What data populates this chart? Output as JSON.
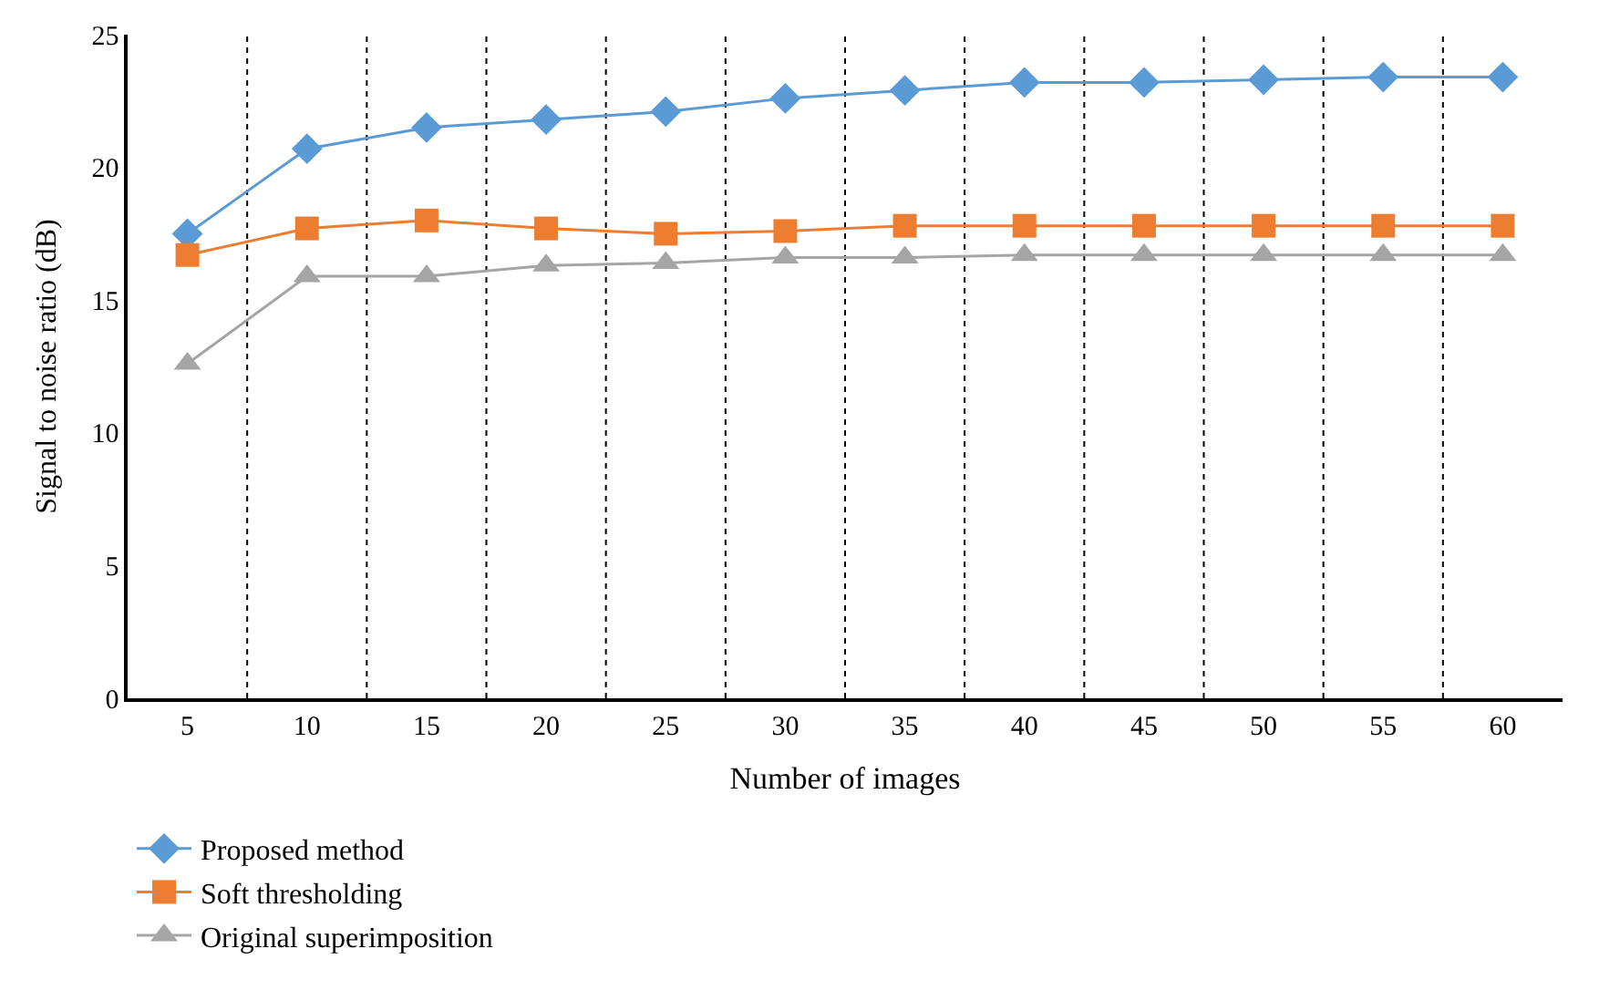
{
  "chart_data": {
    "type": "line",
    "xlabel": "Number of images",
    "ylabel": "Signal to noise ratio (dB)",
    "categories": [
      "5",
      "10",
      "15",
      "20",
      "25",
      "30",
      "35",
      "40",
      "45",
      "50",
      "55",
      "60"
    ],
    "series": [
      {
        "name": "Proposed method",
        "color": "#5b9bd5",
        "marker": "diamond",
        "values": [
          17.5,
          20.7,
          21.5,
          21.8,
          22.1,
          22.6,
          22.9,
          23.2,
          23.2,
          23.3,
          23.4,
          23.4
        ]
      },
      {
        "name": "Soft thresholding",
        "color": "#ed7d31",
        "marker": "square",
        "values": [
          16.7,
          17.7,
          18.0,
          17.7,
          17.5,
          17.6,
          17.8,
          17.8,
          17.8,
          17.8,
          17.8,
          17.8
        ]
      },
      {
        "name": "Original superimposition",
        "color": "#a5a5a5",
        "marker": "triangle",
        "values": [
          12.6,
          15.9,
          15.9,
          16.3,
          16.4,
          16.6,
          16.6,
          16.7,
          16.7,
          16.7,
          16.7,
          16.7
        ]
      }
    ],
    "ylim": [
      0,
      25
    ],
    "yticks": [
      0,
      5,
      10,
      15,
      20,
      25
    ],
    "grid": "x",
    "legend": "bottom left"
  }
}
